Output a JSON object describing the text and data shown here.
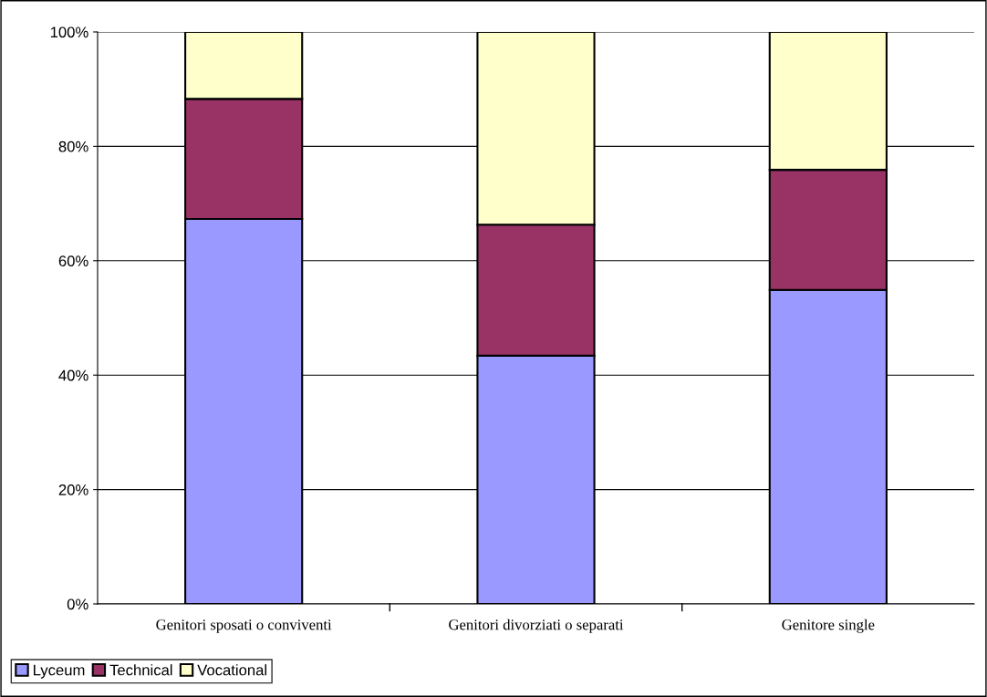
{
  "chart_data": {
    "type": "bar",
    "stacked": true,
    "categories": [
      "Genitori sposati o conviventi",
      "Genitori divorziati o separati",
      "Genitore single"
    ],
    "series": [
      {
        "name": "Lyceum",
        "color": "#9999ff",
        "values": [
          67.3,
          43.4,
          54.9
        ]
      },
      {
        "name": "Technical",
        "color": "#993366",
        "values": [
          21.0,
          22.9,
          21.0
        ]
      },
      {
        "name": "Vocational",
        "color": "#ffffcc",
        "values": [
          11.7,
          33.7,
          24.1
        ]
      }
    ],
    "ylim": [
      0,
      100
    ],
    "yticks": [
      {
        "value": 0,
        "label": "0%"
      },
      {
        "value": 20,
        "label": "20%"
      },
      {
        "value": 40,
        "label": "40%"
      },
      {
        "value": 60,
        "label": "60%"
      },
      {
        "value": 80,
        "label": "80%"
      },
      {
        "value": 100,
        "label": "100%"
      }
    ],
    "grid": "y",
    "legend": "bottom left"
  }
}
